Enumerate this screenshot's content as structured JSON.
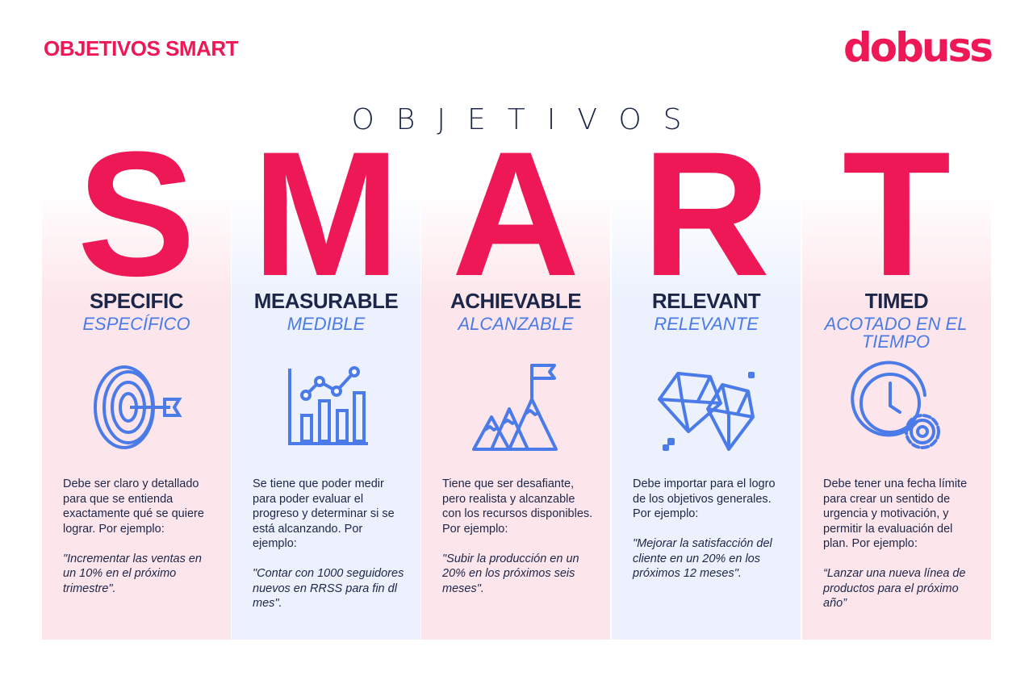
{
  "header": {
    "title": "OBJETIVOS SMART",
    "logo": "dobuss"
  },
  "heading": {
    "top": "OBJETIVOS"
  },
  "colors": {
    "accent": "#ee1857",
    "navy": "#1c2648",
    "blue": "#4a7be8"
  },
  "columns": [
    {
      "letter": "S",
      "name": "SPECIFIC",
      "sub": "ESPECÍFICO",
      "icon": "target-icon",
      "desc": "Debe ser claro y detallado para que se entienda exactamente qué se quiere lograr. Por ejemplo:",
      "example": "\"Incrementar las ventas en un 10% en el próximo trimestre\"."
    },
    {
      "letter": "M",
      "name": "MEASURABLE",
      "sub": "MEDIBLE",
      "icon": "chart-icon",
      "desc": "Se tiene que poder medir para poder evaluar el progreso y determinar si se está alcanzando. Por ejemplo:",
      "example": "\"Contar con 1000 seguidores nuevos en RRSS para fin dl mes\"."
    },
    {
      "letter": "A",
      "name": "ACHIEVABLE",
      "sub": "ALCANZABLE",
      "icon": "mountain-flag-icon",
      "desc": "Tiene que ser desafiante, pero realista y alcanzable con los recursos disponibles. Por ejemplo:",
      "example": "\"Subir la producción en un 20% en los próximos seis meses\"."
    },
    {
      "letter": "R",
      "name": "RELEVANT",
      "sub": "RELEVANTE",
      "icon": "diamond-icon",
      "desc": "Debe importar para el logro de los objetivos generales. Por ejemplo:",
      "example": "\"Mejorar la satisfacción del cliente en un 20% en los próximos 12 meses\"."
    },
    {
      "letter": "T",
      "name": "TIMED",
      "sub": "ACOTADO EN EL TIEMPO",
      "icon": "clock-gear-icon",
      "desc": "Debe tener una fecha límite para crear un sentido de urgencia y motivación, y permitir la evaluación del plan. Por ejemplo:",
      "example": "“Lanzar una nueva línea de productos para el próximo año”"
    }
  ]
}
